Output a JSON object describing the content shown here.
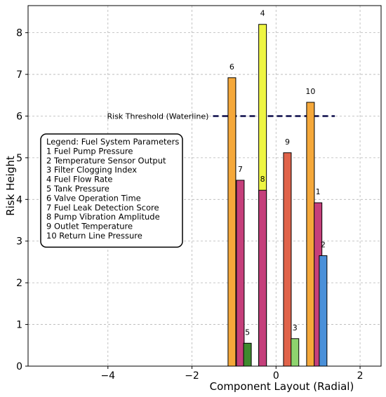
{
  "chart_data": {
    "type": "bar",
    "xlabel": "Component Layout (Radial)",
    "ylabel": "Risk Height",
    "xlim": [
      -5.9,
      2.5
    ],
    "ylim": [
      0,
      8.65
    ],
    "x_ticks": [
      -4,
      -2,
      0,
      2
    ],
    "y_ticks": [
      0,
      1,
      2,
      3,
      4,
      5,
      6,
      7,
      8
    ],
    "grid": true,
    "bars": [
      {
        "id": "1",
        "x": 1.0,
        "value": 3.92,
        "color": "#c53f7b"
      },
      {
        "id": "2",
        "x": 1.12,
        "value": 2.65,
        "color": "#4a90d9"
      },
      {
        "id": "3",
        "x": 0.45,
        "value": 0.66,
        "color": "#8ed46e"
      },
      {
        "id": "4",
        "x": -0.32,
        "value": 8.2,
        "color": "#eef542"
      },
      {
        "id": "5",
        "x": -0.68,
        "value": 0.55,
        "color": "#3f8a2e"
      },
      {
        "id": "6",
        "x": -1.05,
        "value": 6.92,
        "color": "#f5a83a"
      },
      {
        "id": "7",
        "x": -0.85,
        "value": 4.46,
        "color": "#c53f7b"
      },
      {
        "id": "8",
        "x": -0.32,
        "value": 4.22,
        "color": "#c53f7b"
      },
      {
        "id": "9",
        "x": 0.27,
        "value": 5.12,
        "color": "#e0634a"
      },
      {
        "id": "10",
        "x": 0.82,
        "value": 6.33,
        "color": "#f5a83a"
      }
    ],
    "threshold": {
      "value": 6.0,
      "x_range": [
        -1.5,
        1.4
      ],
      "label": "Risk Threshold (Waterline)",
      "color": "#0b0b4a"
    },
    "legend": {
      "title": "Legend: Fuel System Parameters",
      "entries": [
        "1  Fuel Pump Pressure",
        "2  Temperature Sensor Output",
        "3  Filter Clogging Index",
        "4  Fuel Flow Rate",
        "5  Tank Pressure",
        "6  Valve Operation Time",
        "7  Fuel Leak Detection Score",
        "8  Pump Vibration Amplitude",
        "9  Outlet Temperature",
        "10 Return Line Pressure"
      ],
      "placement": "left"
    }
  }
}
